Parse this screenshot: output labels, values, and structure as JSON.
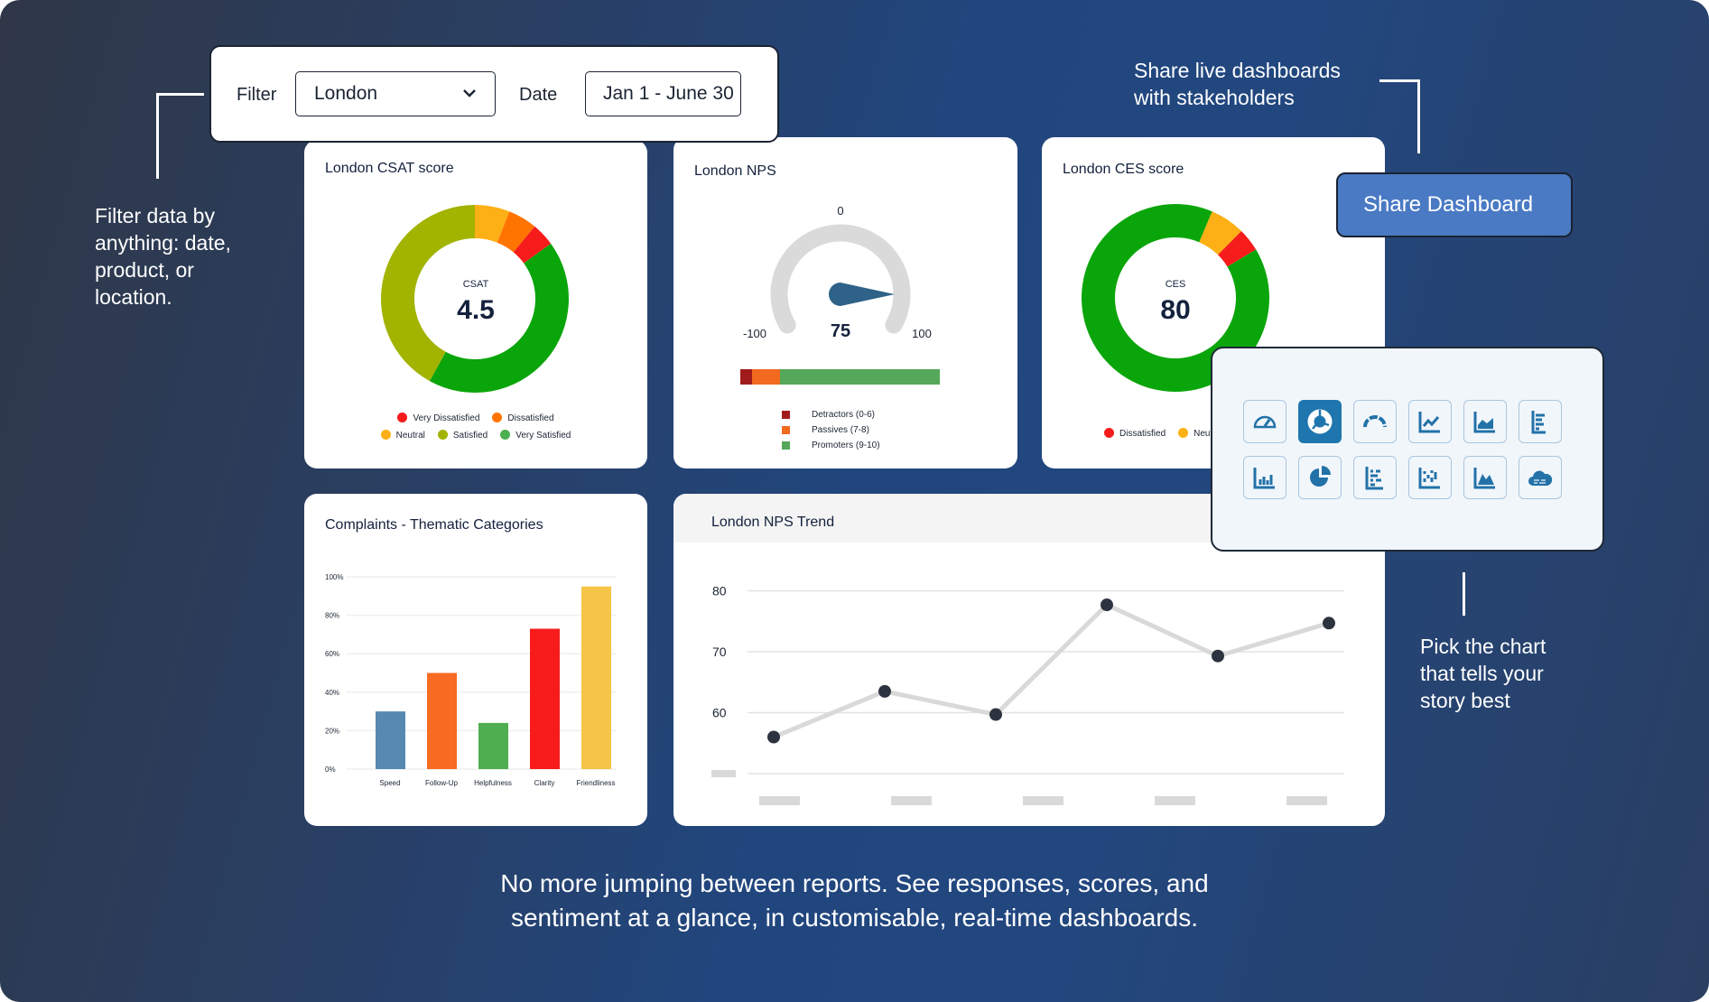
{
  "filter": {
    "label": "Filter",
    "value": "London",
    "date_label": "Date",
    "date_value": "Jan 1 - June 30"
  },
  "notes": {
    "filter": [
      "Filter data by",
      "anything: date,",
      "product, or",
      "location."
    ],
    "share": [
      "Share live dashboards",
      "with stakeholders"
    ],
    "pick": [
      "Pick the chart",
      "that tells your",
      "story best"
    ]
  },
  "share_button": "Share Dashboard",
  "footer": [
    "No more jumping between reports. See responses, scores, and",
    "sentiment at a glance, in customisable, real-time dashboards."
  ],
  "csat": {
    "title": "London CSAT score",
    "center_label": "CSAT",
    "score": "4.5",
    "segments": [
      {
        "name": "Neutral",
        "pct": 6,
        "color": "#fdb015"
      },
      {
        "name": "Dissatisfied",
        "pct": 5,
        "color": "#ff7400"
      },
      {
        "name": "Very Dissatisfied",
        "pct": 4,
        "color": "#f61c1c"
      },
      {
        "name": "Very Satisfied",
        "pct": 43,
        "color": "#0aa50a"
      },
      {
        "name": "Satisfied",
        "pct": 42,
        "color": "#a2b300"
      }
    ],
    "legend_row1": [
      {
        "name": "Very Dissatisfied",
        "color": "#f61c1c"
      },
      {
        "name": "Dissatisfied",
        "color": "#ff7400"
      }
    ],
    "legend_row2": [
      {
        "name": "Neutral",
        "color": "#fdb015"
      },
      {
        "name": "Satisfied",
        "color": "#a2b300"
      },
      {
        "name": "Very Satisfied",
        "color": "#4caf50"
      }
    ]
  },
  "nps": {
    "title": "London NPS",
    "min": "-100",
    "mid": "0",
    "max": "100",
    "value": "75",
    "value_num": 75,
    "breakdown": [
      {
        "name": "Detractors (0-6)",
        "pct": 6,
        "color": "#a01c1c"
      },
      {
        "name": "Passives (7-8)",
        "pct": 14,
        "color": "#f26a1f"
      },
      {
        "name": "Promoters (9-10)",
        "pct": 80,
        "color": "#55a85a"
      }
    ]
  },
  "ces": {
    "title": "London CES score",
    "center_label": "CES",
    "score": "80",
    "segments": [
      {
        "pct": 6,
        "color": "#fdb015"
      },
      {
        "pct": 4,
        "color": "#f61c1c"
      },
      {
        "pct": 90,
        "color": "#0aa50a"
      }
    ],
    "legend": [
      {
        "name": "Dissatisfied",
        "color": "#f61c1c"
      },
      {
        "name": "Neutral",
        "color": "#fdb015"
      }
    ]
  },
  "chart_data": [
    {
      "type": "bar",
      "title": "Complaints - Thematic Categories",
      "categories": [
        "Speed",
        "Follow-Up",
        "Helpfulness",
        "Clarity",
        "Friendliness"
      ],
      "values": [
        30,
        50,
        24,
        73,
        95
      ],
      "colors": [
        "#5689b0",
        "#f76b22",
        "#4fae50",
        "#f71b1b",
        "#f6c447"
      ],
      "yticks": [
        "100%",
        "80%",
        "60%",
        "40%",
        "20%",
        "0%"
      ],
      "ytick_values": [
        100,
        80,
        60,
        40,
        20,
        0
      ],
      "ylim": [
        0,
        100
      ],
      "grid": true
    },
    {
      "type": "line",
      "title": "London NPS Trend",
      "x": [
        1,
        2,
        3,
        4,
        5,
        6
      ],
      "values": [
        56,
        63.5,
        59.7,
        77.7,
        69.3,
        74.7
      ],
      "yticks": [
        "80",
        "70",
        "60"
      ],
      "ytick_values": [
        80,
        70,
        60
      ],
      "ylim": [
        50,
        80
      ],
      "grid": true,
      "line_color": "#d9d9d9",
      "point_color": "#2e3340"
    }
  ],
  "picker": {
    "selected": 1,
    "icons": [
      "gauge-icon",
      "donut-chart-icon",
      "semi-gauge-icon",
      "line-chart-icon",
      "area-line-chart-icon",
      "horizontal-bar-icon",
      "bar-chart-icon",
      "pie-chart-icon",
      "dot-matrix-icon",
      "scatter-grid-icon",
      "mountain-area-icon",
      "word-cloud-icon"
    ]
  }
}
